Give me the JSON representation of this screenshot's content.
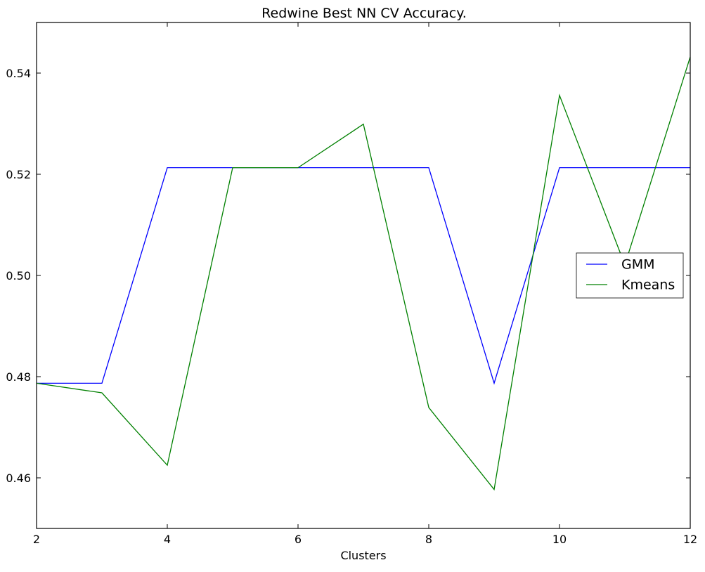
{
  "chart_data": {
    "type": "line",
    "title": "Redwine Best NN CV Accuracy.",
    "xlabel": "Clusters",
    "ylabel": "",
    "xlim": [
      2,
      12
    ],
    "ylim": [
      0.45,
      0.55
    ],
    "x": [
      2,
      3,
      4,
      5,
      6,
      7,
      8,
      9,
      10,
      11,
      12
    ],
    "xticks": [
      2,
      4,
      6,
      8,
      10,
      12
    ],
    "xtick_labels": [
      "2",
      "4",
      "6",
      "8",
      "10",
      "12"
    ],
    "yticks": [
      0.46,
      0.48,
      0.5,
      0.52,
      0.54
    ],
    "ytick_labels": [
      "0.46",
      "0.48",
      "0.50",
      "0.52",
      "0.54"
    ],
    "grid": false,
    "legend_position": "center-right",
    "series": [
      {
        "name": "GMM",
        "color": "#0000ff",
        "values": [
          0.4787,
          0.4787,
          0.5213,
          0.5213,
          0.5213,
          0.5213,
          0.5213,
          0.4787,
          0.5213,
          0.5213,
          0.5213
        ]
      },
      {
        "name": "Kmeans",
        "color": "#008000",
        "values": [
          0.4787,
          0.4768,
          0.4625,
          0.5213,
          0.5213,
          0.5299,
          0.4739,
          0.4577,
          0.5356,
          0.5021,
          0.5432
        ]
      }
    ]
  }
}
